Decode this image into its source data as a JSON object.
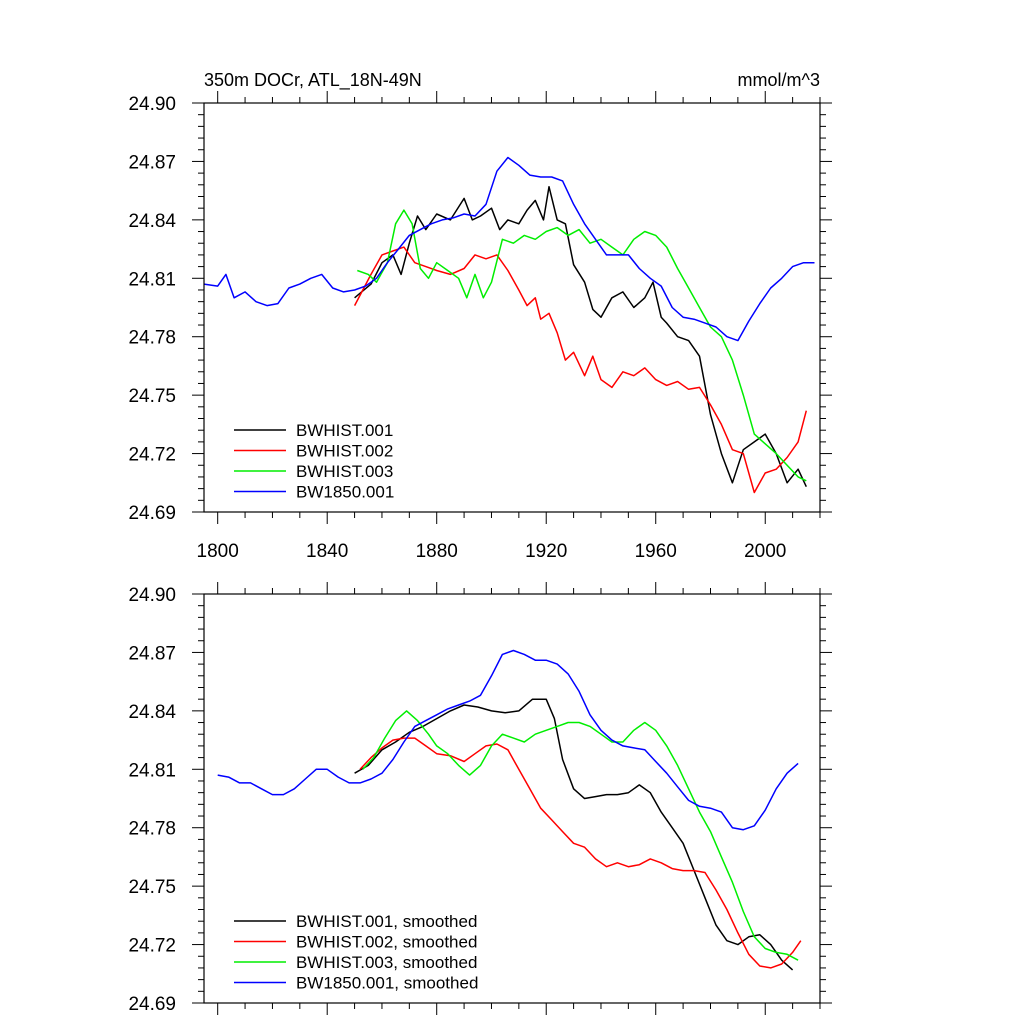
{
  "chart_data": [
    {
      "type": "line",
      "title": "350m DOCr, ATL_18N-49N",
      "units": "mmol/m^3",
      "xlabel": "",
      "ylabel": "",
      "xlim": [
        1795,
        2020
      ],
      "ylim": [
        24.69,
        24.9
      ],
      "xticks": [
        1800,
        1840,
        1880,
        1920,
        1960,
        2000
      ],
      "xtick_labels": [
        "1800",
        "1840",
        "1880",
        "1920",
        "1960",
        "2000"
      ],
      "yticks": [
        24.69,
        24.72,
        24.75,
        24.78,
        24.81,
        24.84,
        24.87,
        24.9
      ],
      "ytick_labels": [
        "24.69",
        "24.72",
        "24.75",
        "24.78",
        "24.81",
        "24.84",
        "24.87",
        "24.90"
      ],
      "legend_position": "bottom-left",
      "series": [
        {
          "name": "BWHIST.001",
          "color": "#000000",
          "x": [
            1850,
            1856,
            1860,
            1864,
            1867,
            1870,
            1873,
            1876,
            1880,
            1885,
            1890,
            1893,
            1896,
            1900,
            1903,
            1906,
            1910,
            1913,
            1916,
            1919,
            1921,
            1924,
            1927,
            1930,
            1934,
            1937,
            1940,
            1944,
            1948,
            1952,
            1956,
            1959,
            1962,
            1964,
            1968,
            1972,
            1976,
            1980,
            1984,
            1988,
            1992,
            1996,
            2000,
            2004,
            2008,
            2012,
            2015
          ],
          "y": [
            24.8,
            24.807,
            24.818,
            24.822,
            24.812,
            24.828,
            24.842,
            24.835,
            24.843,
            24.84,
            24.851,
            24.84,
            24.842,
            24.846,
            24.835,
            24.84,
            24.838,
            24.845,
            24.85,
            24.84,
            24.857,
            24.84,
            24.838,
            24.817,
            24.808,
            24.794,
            24.79,
            24.8,
            24.803,
            24.795,
            24.8,
            24.808,
            24.79,
            24.787,
            24.78,
            24.778,
            24.77,
            24.74,
            24.72,
            24.705,
            24.722,
            24.726,
            24.73,
            24.72,
            24.705,
            24.712,
            24.703
          ]
        },
        {
          "name": "BWHIST.002",
          "color": "#ff0000",
          "x": [
            1850,
            1856,
            1860,
            1864,
            1868,
            1872,
            1876,
            1880,
            1885,
            1890,
            1894,
            1898,
            1902,
            1906,
            1910,
            1913,
            1916,
            1918,
            1921,
            1924,
            1927,
            1930,
            1934,
            1937,
            1940,
            1944,
            1948,
            1952,
            1956,
            1960,
            1964,
            1968,
            1972,
            1976,
            1980,
            1984,
            1988,
            1992,
            1996,
            2000,
            2004,
            2008,
            2012,
            2015
          ],
          "y": [
            24.796,
            24.812,
            24.822,
            24.824,
            24.826,
            24.818,
            24.816,
            24.814,
            24.812,
            24.815,
            24.822,
            24.82,
            24.822,
            24.814,
            24.804,
            24.796,
            24.8,
            24.789,
            24.792,
            24.782,
            24.768,
            24.772,
            24.76,
            24.77,
            24.758,
            24.754,
            24.762,
            24.76,
            24.764,
            24.758,
            24.755,
            24.757,
            24.753,
            24.754,
            24.745,
            24.735,
            24.722,
            24.72,
            24.7,
            24.71,
            24.712,
            24.718,
            24.726,
            24.742
          ]
        },
        {
          "name": "BWHIST.003",
          "color": "#00ee00",
          "x": [
            1851,
            1855,
            1858,
            1862,
            1865,
            1868,
            1871,
            1874,
            1877,
            1880,
            1884,
            1888,
            1891,
            1894,
            1897,
            1900,
            1904,
            1908,
            1912,
            1916,
            1920,
            1924,
            1928,
            1932,
            1936,
            1940,
            1944,
            1948,
            1952,
            1956,
            1960,
            1964,
            1968,
            1972,
            1976,
            1980,
            1984,
            1988,
            1992,
            1996,
            2000,
            2004,
            2008,
            2012,
            2015
          ],
          "y": [
            24.814,
            24.812,
            24.808,
            24.818,
            24.838,
            24.845,
            24.838,
            24.815,
            24.81,
            24.818,
            24.814,
            24.81,
            24.8,
            24.812,
            24.8,
            24.808,
            24.83,
            24.828,
            24.832,
            24.83,
            24.834,
            24.836,
            24.832,
            24.835,
            24.828,
            24.83,
            24.826,
            24.822,
            24.83,
            24.834,
            24.832,
            24.826,
            24.815,
            24.805,
            24.795,
            24.785,
            24.78,
            24.768,
            24.75,
            24.73,
            24.725,
            24.72,
            24.714,
            24.708,
            24.706
          ]
        },
        {
          "name": "BW1850.001",
          "color": "#0000ff",
          "x": [
            1795,
            1800,
            1803,
            1806,
            1810,
            1814,
            1818,
            1822,
            1826,
            1830,
            1834,
            1838,
            1842,
            1846,
            1850,
            1854,
            1858,
            1862,
            1866,
            1870,
            1874,
            1878,
            1882,
            1886,
            1890,
            1894,
            1898,
            1902,
            1906,
            1910,
            1914,
            1918,
            1922,
            1926,
            1930,
            1934,
            1938,
            1942,
            1946,
            1950,
            1954,
            1958,
            1962,
            1966,
            1970,
            1974,
            1978,
            1982,
            1986,
            1990,
            1994,
            1998,
            2002,
            2006,
            2010,
            2014,
            2018
          ],
          "y": [
            24.807,
            24.806,
            24.812,
            24.8,
            24.803,
            24.798,
            24.796,
            24.797,
            24.805,
            24.807,
            24.81,
            24.812,
            24.805,
            24.803,
            24.804,
            24.806,
            24.81,
            24.818,
            24.825,
            24.832,
            24.835,
            24.838,
            24.84,
            24.841,
            24.843,
            24.842,
            24.848,
            24.865,
            24.872,
            24.868,
            24.863,
            24.862,
            24.862,
            24.86,
            24.848,
            24.838,
            24.83,
            24.822,
            24.822,
            24.822,
            24.815,
            24.81,
            24.806,
            24.795,
            24.79,
            24.789,
            24.787,
            24.785,
            24.78,
            24.778,
            24.788,
            24.797,
            24.805,
            24.81,
            24.816,
            24.818,
            24.818
          ]
        }
      ],
      "legend": [
        "BWHIST.001",
        "BWHIST.002",
        "BWHIST.003",
        "BW1850.001"
      ]
    },
    {
      "type": "line",
      "title": "",
      "xlabel": "",
      "ylabel": "",
      "xlim": [
        1795,
        2020
      ],
      "ylim": [
        24.69,
        24.9
      ],
      "xticks": [
        1800,
        1840,
        1880,
        1920,
        1960,
        2000
      ],
      "yticks": [
        24.69,
        24.72,
        24.75,
        24.78,
        24.81,
        24.84,
        24.87,
        24.9
      ],
      "ytick_labels": [
        "24.69",
        "24.72",
        "24.75",
        "24.78",
        "24.81",
        "24.84",
        "24.87",
        "24.90"
      ],
      "legend_position": "bottom-left",
      "series": [
        {
          "name": "BWHIST.001, smoothed",
          "color": "#000000",
          "x": [
            1850,
            1855,
            1860,
            1865,
            1870,
            1875,
            1880,
            1885,
            1890,
            1895,
            1900,
            1905,
            1910,
            1915,
            1920,
            1923,
            1926,
            1930,
            1934,
            1938,
            1942,
            1946,
            1950,
            1954,
            1958,
            1962,
            1966,
            1970,
            1974,
            1978,
            1982,
            1986,
            1990,
            1994,
            1998,
            2002,
            2006,
            2010
          ],
          "y": [
            24.808,
            24.812,
            24.82,
            24.824,
            24.829,
            24.832,
            24.836,
            24.84,
            24.843,
            24.842,
            24.84,
            24.839,
            24.84,
            24.846,
            24.846,
            24.836,
            24.815,
            24.8,
            24.795,
            24.796,
            24.797,
            24.797,
            24.798,
            24.802,
            24.798,
            24.788,
            24.78,
            24.772,
            24.758,
            24.744,
            24.73,
            24.722,
            24.72,
            24.724,
            24.725,
            24.72,
            24.712,
            24.707
          ]
        },
        {
          "name": "BWHIST.002, smoothed",
          "color": "#ff0000",
          "x": [
            1852,
            1856,
            1860,
            1864,
            1868,
            1872,
            1876,
            1880,
            1885,
            1890,
            1894,
            1898,
            1902,
            1906,
            1910,
            1914,
            1918,
            1922,
            1926,
            1930,
            1934,
            1938,
            1942,
            1946,
            1950,
            1954,
            1958,
            1962,
            1966,
            1970,
            1974,
            1978,
            1982,
            1986,
            1990,
            1994,
            1998,
            2002,
            2006,
            2010,
            2013
          ],
          "y": [
            24.81,
            24.816,
            24.821,
            24.825,
            24.826,
            24.826,
            24.822,
            24.818,
            24.817,
            24.814,
            24.818,
            24.822,
            24.823,
            24.82,
            24.81,
            24.8,
            24.79,
            24.784,
            24.778,
            24.772,
            24.77,
            24.764,
            24.76,
            24.762,
            24.76,
            24.761,
            24.764,
            24.762,
            24.759,
            24.758,
            24.758,
            24.757,
            24.748,
            24.738,
            24.726,
            24.715,
            24.709,
            24.708,
            24.71,
            24.716,
            24.722
          ]
        },
        {
          "name": "BWHIST.003, smoothed",
          "color": "#00ee00",
          "x": [
            1853,
            1857,
            1861,
            1865,
            1869,
            1873,
            1877,
            1880,
            1884,
            1888,
            1892,
            1896,
            1900,
            1904,
            1908,
            1912,
            1916,
            1920,
            1924,
            1928,
            1932,
            1936,
            1940,
            1944,
            1948,
            1952,
            1956,
            1960,
            1964,
            1968,
            1972,
            1976,
            1980,
            1984,
            1988,
            1992,
            1996,
            2000,
            2004,
            2008,
            2012
          ],
          "y": [
            24.81,
            24.816,
            24.826,
            24.835,
            24.84,
            24.835,
            24.828,
            24.822,
            24.818,
            24.812,
            24.807,
            24.812,
            24.822,
            24.828,
            24.826,
            24.824,
            24.828,
            24.83,
            24.832,
            24.834,
            24.834,
            24.832,
            24.828,
            24.824,
            24.824,
            24.83,
            24.834,
            24.83,
            24.822,
            24.812,
            24.8,
            24.788,
            24.778,
            24.765,
            24.752,
            24.737,
            24.724,
            24.718,
            24.716,
            24.715,
            24.712
          ]
        },
        {
          "name": "BW1850.001, smoothed",
          "color": "#0000ff",
          "x": [
            1800,
            1804,
            1808,
            1812,
            1816,
            1820,
            1824,
            1828,
            1832,
            1836,
            1840,
            1844,
            1848,
            1852,
            1856,
            1860,
            1864,
            1868,
            1872,
            1876,
            1880,
            1884,
            1888,
            1892,
            1896,
            1900,
            1904,
            1908,
            1912,
            1916,
            1920,
            1924,
            1928,
            1932,
            1936,
            1940,
            1944,
            1948,
            1952,
            1956,
            1960,
            1964,
            1968,
            1972,
            1976,
            1980,
            1984,
            1988,
            1992,
            1996,
            2000,
            2004,
            2008,
            2012
          ],
          "y": [
            24.807,
            24.806,
            24.803,
            24.803,
            24.8,
            24.797,
            24.797,
            24.8,
            24.805,
            24.81,
            24.81,
            24.806,
            24.803,
            24.803,
            24.805,
            24.808,
            24.815,
            24.824,
            24.832,
            24.835,
            24.838,
            24.841,
            24.843,
            24.845,
            24.848,
            24.858,
            24.869,
            24.871,
            24.869,
            24.866,
            24.866,
            24.864,
            24.859,
            24.85,
            24.838,
            24.83,
            24.825,
            24.822,
            24.821,
            24.82,
            24.814,
            24.808,
            24.801,
            24.794,
            24.791,
            24.79,
            24.788,
            24.78,
            24.779,
            24.781,
            24.789,
            24.8,
            24.808,
            24.813
          ]
        }
      ],
      "legend": [
        "BWHIST.001, smoothed",
        "BWHIST.002, smoothed",
        "BWHIST.003, smoothed",
        "BW1850.001, smoothed"
      ]
    }
  ]
}
